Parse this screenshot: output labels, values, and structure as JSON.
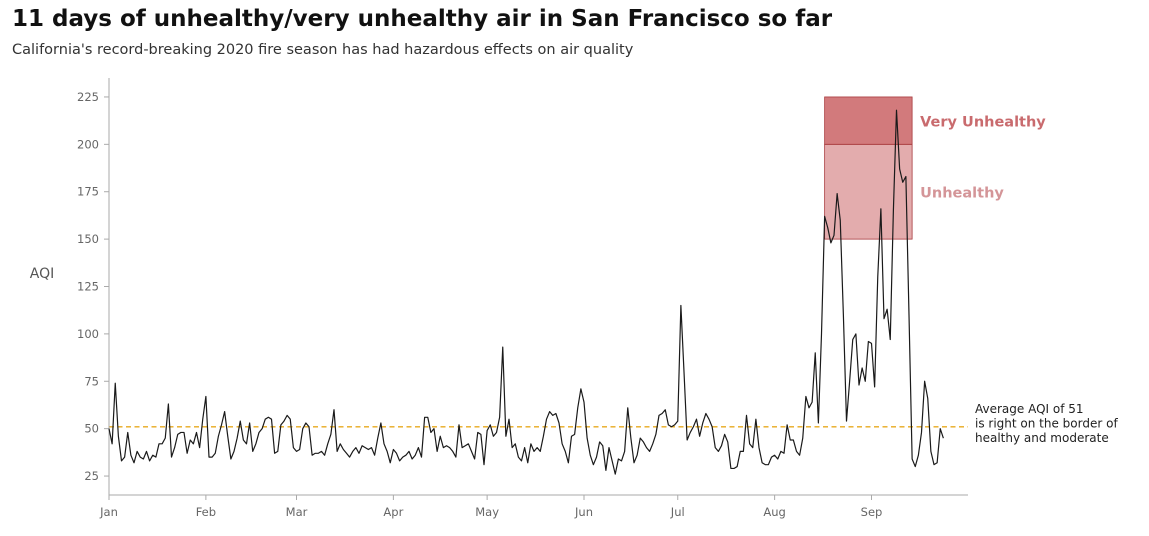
{
  "header": {
    "title": "11 days of unhealthy/very unhealthy air in San Francisco so far",
    "subtitle": "California's record-breaking 2020 fire season has had hazardous effects on air quality"
  },
  "chart_data": {
    "type": "line",
    "title": "11 days of unhealthy/very unhealthy air in San Francisco so far",
    "subtitle": "California's record-breaking 2020 fire season has had hazardous effects on air quality",
    "ylabel": "AQI",
    "xlabel": "",
    "ylim": [
      15,
      235
    ],
    "yticks": [
      25,
      50,
      75,
      100,
      125,
      150,
      175,
      200,
      225
    ],
    "xlim": [
      "2020-01-01",
      "2020-09-30"
    ],
    "xticks": [
      {
        "date": "2020-01-01",
        "label": "Jan"
      },
      {
        "date": "2020-02-01",
        "label": "Feb"
      },
      {
        "date": "2020-03-01",
        "label": "Mar"
      },
      {
        "date": "2020-04-01",
        "label": "Apr"
      },
      {
        "date": "2020-05-01",
        "label": "May"
      },
      {
        "date": "2020-06-01",
        "label": "Jun"
      },
      {
        "date": "2020-07-01",
        "label": "Jul"
      },
      {
        "date": "2020-08-01",
        "label": "Aug"
      },
      {
        "date": "2020-09-01",
        "label": "Sep"
      }
    ],
    "grid": false,
    "series": [
      {
        "color": "#1a1a1a",
        "points": [
          [
            "2020-01-01",
            50
          ],
          [
            "2020-01-02",
            42
          ],
          [
            "2020-01-03",
            74
          ],
          [
            "2020-01-04",
            46
          ],
          [
            "2020-01-05",
            33
          ],
          [
            "2020-01-06",
            35
          ],
          [
            "2020-01-07",
            48
          ],
          [
            "2020-01-08",
            36
          ],
          [
            "2020-01-09",
            32
          ],
          [
            "2020-01-10",
            38
          ],
          [
            "2020-01-11",
            35
          ],
          [
            "2020-01-12",
            34
          ],
          [
            "2020-01-13",
            38
          ],
          [
            "2020-01-14",
            33
          ],
          [
            "2020-01-15",
            36
          ],
          [
            "2020-01-16",
            35
          ],
          [
            "2020-01-17",
            42
          ],
          [
            "2020-01-18",
            42
          ],
          [
            "2020-01-19",
            45
          ],
          [
            "2020-01-20",
            63
          ],
          [
            "2020-01-21",
            35
          ],
          [
            "2020-01-22",
            40
          ],
          [
            "2020-01-23",
            47
          ],
          [
            "2020-01-24",
            48
          ],
          [
            "2020-01-25",
            48
          ],
          [
            "2020-01-26",
            37
          ],
          [
            "2020-01-27",
            44
          ],
          [
            "2020-01-28",
            42
          ],
          [
            "2020-01-29",
            48
          ],
          [
            "2020-01-30",
            40
          ],
          [
            "2020-01-31",
            55
          ],
          [
            "2020-02-01",
            67
          ],
          [
            "2020-02-02",
            35
          ],
          [
            "2020-02-03",
            35
          ],
          [
            "2020-02-04",
            37
          ],
          [
            "2020-02-05",
            46
          ],
          [
            "2020-02-06",
            52
          ],
          [
            "2020-02-07",
            59
          ],
          [
            "2020-02-08",
            46
          ],
          [
            "2020-02-09",
            34
          ],
          [
            "2020-02-10",
            38
          ],
          [
            "2020-02-11",
            45
          ],
          [
            "2020-02-12",
            54
          ],
          [
            "2020-02-13",
            44
          ],
          [
            "2020-02-14",
            42
          ],
          [
            "2020-02-15",
            53
          ],
          [
            "2020-02-16",
            38
          ],
          [
            "2020-02-17",
            42
          ],
          [
            "2020-02-18",
            48
          ],
          [
            "2020-02-19",
            50
          ],
          [
            "2020-02-20",
            55
          ],
          [
            "2020-02-21",
            56
          ],
          [
            "2020-02-22",
            55
          ],
          [
            "2020-02-23",
            37
          ],
          [
            "2020-02-24",
            38
          ],
          [
            "2020-02-25",
            52
          ],
          [
            "2020-02-26",
            54
          ],
          [
            "2020-02-27",
            57
          ],
          [
            "2020-02-28",
            55
          ],
          [
            "2020-02-29",
            40
          ],
          [
            "2020-03-01",
            38
          ],
          [
            "2020-03-02",
            39
          ],
          [
            "2020-03-03",
            50
          ],
          [
            "2020-03-04",
            53
          ],
          [
            "2020-03-05",
            51
          ],
          [
            "2020-03-06",
            36
          ],
          [
            "2020-03-07",
            37
          ],
          [
            "2020-03-08",
            37
          ],
          [
            "2020-03-09",
            38
          ],
          [
            "2020-03-10",
            36
          ],
          [
            "2020-03-11",
            42
          ],
          [
            "2020-03-12",
            47
          ],
          [
            "2020-03-13",
            60
          ],
          [
            "2020-03-14",
            38
          ],
          [
            "2020-03-15",
            42
          ],
          [
            "2020-03-16",
            39
          ],
          [
            "2020-03-17",
            37
          ],
          [
            "2020-03-18",
            35
          ],
          [
            "2020-03-19",
            38
          ],
          [
            "2020-03-20",
            40
          ],
          [
            "2020-03-21",
            37
          ],
          [
            "2020-03-22",
            41
          ],
          [
            "2020-03-23",
            40
          ],
          [
            "2020-03-24",
            39
          ],
          [
            "2020-03-25",
            40
          ],
          [
            "2020-03-26",
            36
          ],
          [
            "2020-03-27",
            45
          ],
          [
            "2020-03-28",
            53
          ],
          [
            "2020-03-29",
            42
          ],
          [
            "2020-03-30",
            38
          ],
          [
            "2020-03-31",
            32
          ],
          [
            "2020-04-01",
            39
          ],
          [
            "2020-04-02",
            37
          ],
          [
            "2020-04-03",
            33
          ],
          [
            "2020-04-04",
            35
          ],
          [
            "2020-04-05",
            36
          ],
          [
            "2020-04-06",
            38
          ],
          [
            "2020-04-07",
            34
          ],
          [
            "2020-04-08",
            36
          ],
          [
            "2020-04-09",
            40
          ],
          [
            "2020-04-10",
            35
          ],
          [
            "2020-04-11",
            56
          ],
          [
            "2020-04-12",
            56
          ],
          [
            "2020-04-13",
            48
          ],
          [
            "2020-04-14",
            50
          ],
          [
            "2020-04-15",
            38
          ],
          [
            "2020-04-16",
            46
          ],
          [
            "2020-04-17",
            40
          ],
          [
            "2020-04-18",
            41
          ],
          [
            "2020-04-19",
            40
          ],
          [
            "2020-04-20",
            38
          ],
          [
            "2020-04-21",
            35
          ],
          [
            "2020-04-22",
            52
          ],
          [
            "2020-04-23",
            40
          ],
          [
            "2020-04-24",
            41
          ],
          [
            "2020-04-25",
            42
          ],
          [
            "2020-04-26",
            38
          ],
          [
            "2020-04-27",
            34
          ],
          [
            "2020-04-28",
            48
          ],
          [
            "2020-04-29",
            47
          ],
          [
            "2020-04-30",
            31
          ],
          [
            "2020-05-01",
            49
          ],
          [
            "2020-05-02",
            52
          ],
          [
            "2020-05-03",
            46
          ],
          [
            "2020-05-04",
            48
          ],
          [
            "2020-05-05",
            56
          ],
          [
            "2020-05-06",
            93
          ],
          [
            "2020-05-07",
            46
          ],
          [
            "2020-05-08",
            55
          ],
          [
            "2020-05-09",
            40
          ],
          [
            "2020-05-10",
            42
          ],
          [
            "2020-05-11",
            35
          ],
          [
            "2020-05-12",
            33
          ],
          [
            "2020-05-13",
            40
          ],
          [
            "2020-05-14",
            32
          ],
          [
            "2020-05-15",
            42
          ],
          [
            "2020-05-16",
            38
          ],
          [
            "2020-05-17",
            40
          ],
          [
            "2020-05-18",
            38
          ],
          [
            "2020-05-19",
            46
          ],
          [
            "2020-05-20",
            55
          ],
          [
            "2020-05-21",
            59
          ],
          [
            "2020-05-22",
            57
          ],
          [
            "2020-05-23",
            58
          ],
          [
            "2020-05-24",
            53
          ],
          [
            "2020-05-25",
            42
          ],
          [
            "2020-05-26",
            38
          ],
          [
            "2020-05-27",
            32
          ],
          [
            "2020-05-28",
            46
          ],
          [
            "2020-05-29",
            47
          ],
          [
            "2020-05-30",
            61
          ],
          [
            "2020-05-31",
            71
          ],
          [
            "2020-06-01",
            64
          ],
          [
            "2020-06-02",
            45
          ],
          [
            "2020-06-03",
            36
          ],
          [
            "2020-06-04",
            31
          ],
          [
            "2020-06-05",
            35
          ],
          [
            "2020-06-06",
            43
          ],
          [
            "2020-06-07",
            41
          ],
          [
            "2020-06-08",
            28
          ],
          [
            "2020-06-09",
            40
          ],
          [
            "2020-06-10",
            33
          ],
          [
            "2020-06-11",
            26
          ],
          [
            "2020-06-12",
            34
          ],
          [
            "2020-06-13",
            33
          ],
          [
            "2020-06-14",
            38
          ],
          [
            "2020-06-15",
            61
          ],
          [
            "2020-06-16",
            45
          ],
          [
            "2020-06-17",
            32
          ],
          [
            "2020-06-18",
            36
          ],
          [
            "2020-06-19",
            45
          ],
          [
            "2020-06-20",
            43
          ],
          [
            "2020-06-21",
            40
          ],
          [
            "2020-06-22",
            38
          ],
          [
            "2020-06-23",
            42
          ],
          [
            "2020-06-24",
            47
          ],
          [
            "2020-06-25",
            57
          ],
          [
            "2020-06-26",
            58
          ],
          [
            "2020-06-27",
            60
          ],
          [
            "2020-06-28",
            52
          ],
          [
            "2020-06-29",
            51
          ],
          [
            "2020-06-30",
            52
          ],
          [
            "2020-07-01",
            54
          ],
          [
            "2020-07-02",
            115
          ],
          [
            "2020-07-03",
            80
          ],
          [
            "2020-07-04",
            44
          ],
          [
            "2020-07-05",
            48
          ],
          [
            "2020-07-06",
            51
          ],
          [
            "2020-07-07",
            55
          ],
          [
            "2020-07-08",
            46
          ],
          [
            "2020-07-09",
            53
          ],
          [
            "2020-07-10",
            58
          ],
          [
            "2020-07-11",
            55
          ],
          [
            "2020-07-12",
            51
          ],
          [
            "2020-07-13",
            40
          ],
          [
            "2020-07-14",
            38
          ],
          [
            "2020-07-15",
            41
          ],
          [
            "2020-07-16",
            47
          ],
          [
            "2020-07-17",
            43
          ],
          [
            "2020-07-18",
            29
          ],
          [
            "2020-07-19",
            29
          ],
          [
            "2020-07-20",
            30
          ],
          [
            "2020-07-21",
            38
          ],
          [
            "2020-07-22",
            38
          ],
          [
            "2020-07-23",
            57
          ],
          [
            "2020-07-24",
            42
          ],
          [
            "2020-07-25",
            40
          ],
          [
            "2020-07-26",
            55
          ],
          [
            "2020-07-27",
            40
          ],
          [
            "2020-07-28",
            32
          ],
          [
            "2020-07-29",
            31
          ],
          [
            "2020-07-30",
            31
          ],
          [
            "2020-07-31",
            35
          ],
          [
            "2020-08-01",
            36
          ],
          [
            "2020-08-02",
            34
          ],
          [
            "2020-08-03",
            38
          ],
          [
            "2020-08-04",
            37
          ],
          [
            "2020-08-05",
            52
          ],
          [
            "2020-08-06",
            44
          ],
          [
            "2020-08-07",
            44
          ],
          [
            "2020-08-08",
            38
          ],
          [
            "2020-08-09",
            36
          ],
          [
            "2020-08-10",
            45
          ],
          [
            "2020-08-11",
            67
          ],
          [
            "2020-08-12",
            61
          ],
          [
            "2020-08-13",
            64
          ],
          [
            "2020-08-14",
            90
          ],
          [
            "2020-08-15",
            53
          ],
          [
            "2020-08-16",
            100
          ],
          [
            "2020-08-17",
            162
          ],
          [
            "2020-08-18",
            156
          ],
          [
            "2020-08-19",
            148
          ],
          [
            "2020-08-20",
            152
          ],
          [
            "2020-08-21",
            174
          ],
          [
            "2020-08-22",
            160
          ],
          [
            "2020-08-23",
            110
          ],
          [
            "2020-08-24",
            54
          ],
          [
            "2020-08-25",
            75
          ],
          [
            "2020-08-26",
            97
          ],
          [
            "2020-08-27",
            100
          ],
          [
            "2020-08-28",
            73
          ],
          [
            "2020-08-29",
            82
          ],
          [
            "2020-08-30",
            75
          ],
          [
            "2020-08-31",
            96
          ],
          [
            "2020-09-01",
            95
          ],
          [
            "2020-09-02",
            72
          ],
          [
            "2020-09-03",
            130
          ],
          [
            "2020-09-04",
            166
          ],
          [
            "2020-09-05",
            108
          ],
          [
            "2020-09-06",
            113
          ],
          [
            "2020-09-07",
            97
          ],
          [
            "2020-09-08",
            165
          ],
          [
            "2020-09-09",
            218
          ],
          [
            "2020-09-10",
            187
          ],
          [
            "2020-09-11",
            180
          ],
          [
            "2020-09-12",
            183
          ],
          [
            "2020-09-13",
            110
          ],
          [
            "2020-09-14",
            34
          ],
          [
            "2020-09-15",
            30
          ],
          [
            "2020-09-16",
            36
          ],
          [
            "2020-09-17",
            48
          ],
          [
            "2020-09-18",
            75
          ],
          [
            "2020-09-19",
            66
          ],
          [
            "2020-09-20",
            38
          ],
          [
            "2020-09-21",
            31
          ],
          [
            "2020-09-22",
            32
          ],
          [
            "2020-09-23",
            50
          ],
          [
            "2020-09-24",
            45
          ]
        ]
      }
    ],
    "reference_line": {
      "value": 51,
      "color": "#e8a91e",
      "annotation": [
        "Average AQI of 51",
        "is right on the border of",
        "healthy and moderate"
      ]
    },
    "bands": [
      {
        "label": "Very Unhealthy",
        "from": 200,
        "to": 225,
        "x_start": "2020-08-17",
        "x_end": "2020-09-14",
        "fill": "#c0474a",
        "opacity": 0.72,
        "text_color": "#c96b6e"
      },
      {
        "label": "Unhealthy",
        "from": 150,
        "to": 200,
        "x_start": "2020-08-17",
        "x_end": "2020-09-14",
        "fill": "#c0474a",
        "opacity": 0.45,
        "text_color": "#d49598"
      }
    ],
    "axis_color": "#aaaaaa",
    "tick_label_color": "#666666"
  }
}
